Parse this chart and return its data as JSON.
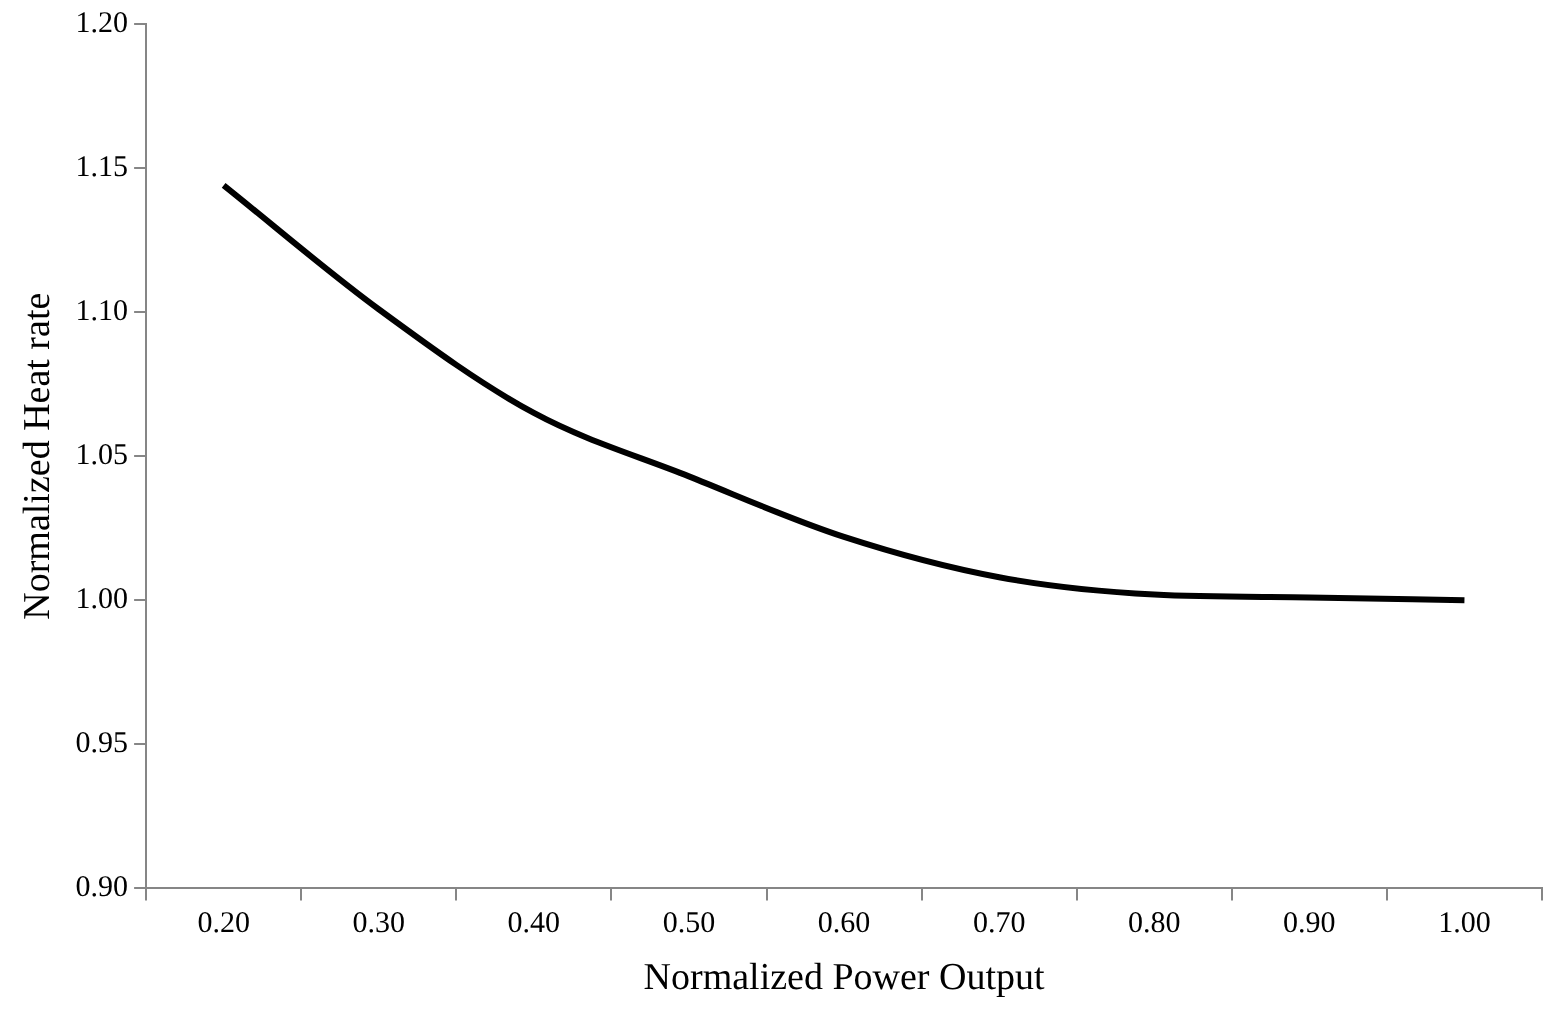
{
  "chart_data": {
    "type": "line",
    "xlabel": "Normalized Power Output",
    "ylabel": "Normalized Heat rate",
    "categories": [
      "0.20",
      "0.30",
      "0.40",
      "0.50",
      "0.60",
      "0.70",
      "0.80",
      "0.90",
      "1.00"
    ],
    "series": [
      {
        "color": "#000000",
        "values": [
          1.144,
          1.101,
          1.065,
          1.043,
          1.022,
          1.008,
          1.002,
          1.001,
          1.0
        ]
      }
    ],
    "ylim": [
      0.9,
      1.2
    ],
    "yticks": [
      {
        "value": 0.9,
        "label": "0.90"
      },
      {
        "value": 0.95,
        "label": "0.95"
      },
      {
        "value": 1.0,
        "label": "1.00"
      },
      {
        "value": 1.05,
        "label": "1.05"
      },
      {
        "value": 1.1,
        "label": "1.10"
      },
      {
        "value": 1.15,
        "label": "1.15"
      },
      {
        "value": 1.2,
        "label": "1.20"
      }
    ],
    "grid": false,
    "legend": false,
    "marker": "none",
    "line_style": "solid"
  }
}
